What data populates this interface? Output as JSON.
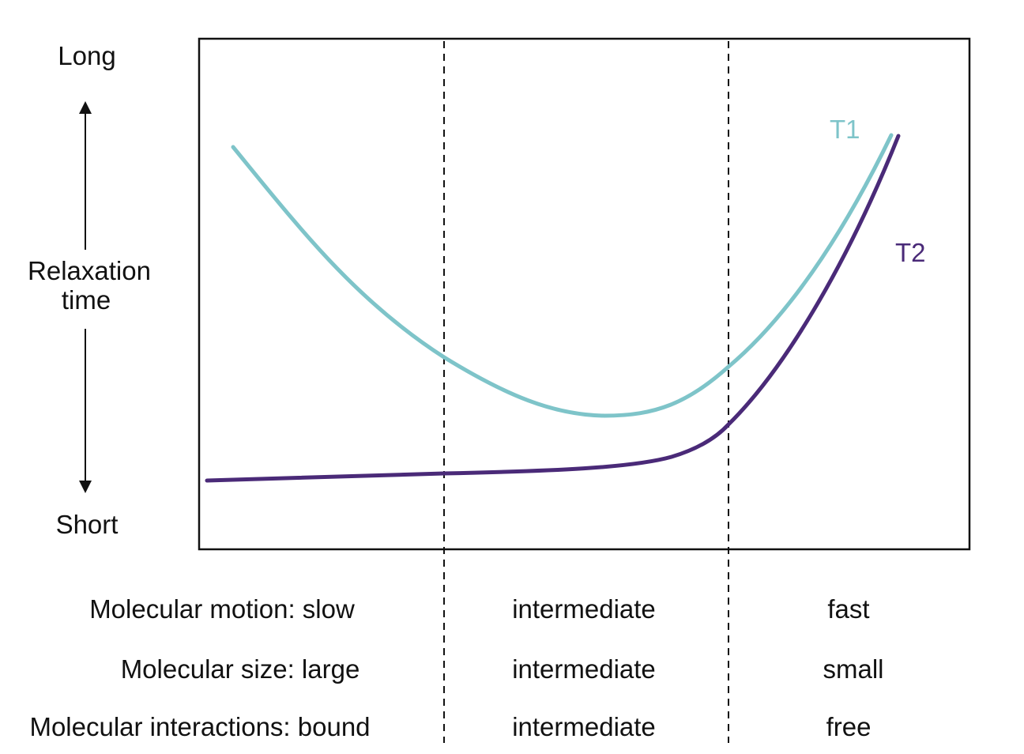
{
  "y_axis": {
    "top": "Long",
    "title_line1": "Relaxation",
    "title_line2": "time",
    "bottom": "Short"
  },
  "curves": [
    {
      "label": "T1",
      "color": "#7ec4c9"
    },
    {
      "label": "T2",
      "color": "#4a2a78"
    }
  ],
  "rows": [
    {
      "label": "Molecular motion: slow",
      "mid": "intermediate",
      "right": "fast"
    },
    {
      "label": "Molecular size: large",
      "mid": "intermediate",
      "right": "small"
    },
    {
      "label": "Molecular interactions: bound",
      "mid": "intermediate",
      "right": "free"
    }
  ]
}
